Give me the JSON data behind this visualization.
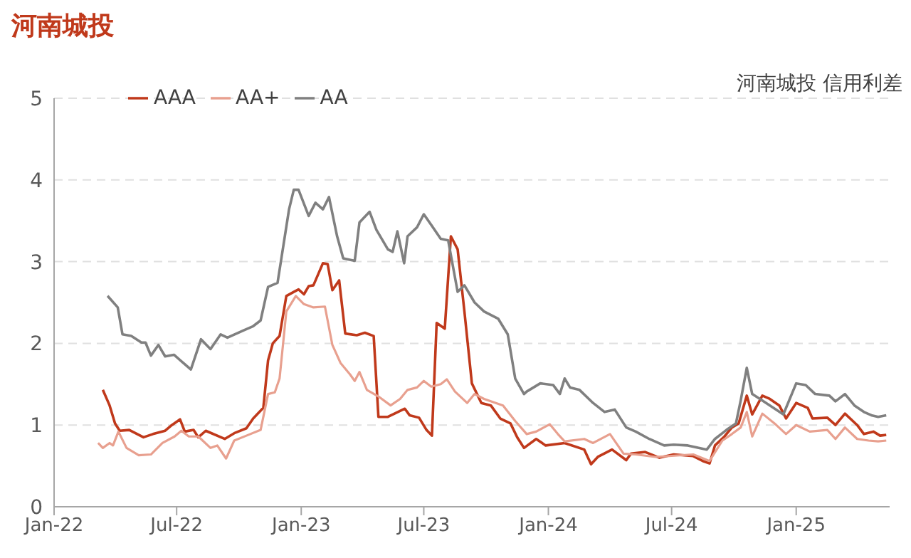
{
  "chart_data": {
    "type": "line",
    "title": "河南城投",
    "annotations": [
      "河南城投 信用利差"
    ],
    "xlim": [
      "2022-01-01",
      "2025-05-19"
    ],
    "xticks": [
      {
        "value": "2022-01-01",
        "label": "Jan-22"
      },
      {
        "value": "2022-07-01",
        "label": "Jul-22"
      },
      {
        "value": "2023-01-01",
        "label": "Jan-23"
      },
      {
        "value": "2023-07-01",
        "label": "Jul-23"
      },
      {
        "value": "2024-01-01",
        "label": "Jan-24"
      },
      {
        "value": "2024-07-01",
        "label": "Jul-24"
      },
      {
        "value": "2025-01-01",
        "label": "Jan-25"
      }
    ],
    "ylim": [
      0,
      5
    ],
    "yticks": [
      0,
      1,
      2,
      3,
      4,
      5
    ],
    "grid": "y",
    "legend": "top",
    "marker": "none",
    "line_style": "solid",
    "series": [
      {
        "name": "AAA",
        "color": "#c0391b",
        "x": [
          "2022-03-14",
          "2022-03-24",
          "2022-04-01",
          "2022-04-08",
          "2022-04-22",
          "2022-05-13",
          "2022-05-27",
          "2022-06-14",
          "2022-06-24",
          "2022-07-06",
          "2022-07-13",
          "2022-07-26",
          "2022-08-02",
          "2022-08-13",
          "2022-09-10",
          "2022-09-24",
          "2022-10-12",
          "2022-10-22",
          "2022-11-06",
          "2022-11-13",
          "2022-11-20",
          "2022-11-30",
          "2022-12-10",
          "2022-12-21",
          "2022-12-28",
          "2023-01-05",
          "2023-01-12",
          "2023-01-19",
          "2023-02-02",
          "2023-02-09",
          "2023-02-16",
          "2023-02-26",
          "2023-03-07",
          "2023-03-24",
          "2023-04-05",
          "2023-04-18",
          "2023-04-25",
          "2023-05-09",
          "2023-06-03",
          "2023-06-10",
          "2023-06-24",
          "2023-07-05",
          "2023-07-13",
          "2023-07-20",
          "2023-08-01",
          "2023-08-10",
          "2023-08-20",
          "2023-08-30",
          "2023-09-10",
          "2023-09-24",
          "2023-10-08",
          "2023-10-22",
          "2023-11-06",
          "2023-11-16",
          "2023-11-26",
          "2023-12-14",
          "2023-12-28",
          "2024-01-25",
          "2024-02-23",
          "2024-03-04",
          "2024-03-14",
          "2024-04-04",
          "2024-04-25",
          "2024-05-02",
          "2024-05-23",
          "2024-06-13",
          "2024-07-04",
          "2024-08-02",
          "2024-08-16",
          "2024-08-26",
          "2024-09-03",
          "2024-09-17",
          "2024-09-28",
          "2024-10-08",
          "2024-10-20",
          "2024-10-28",
          "2024-11-12",
          "2024-11-23",
          "2024-12-07",
          "2024-12-17",
          "2025-01-01",
          "2025-01-18",
          "2025-01-25",
          "2025-02-16",
          "2025-02-28",
          "2025-03-14",
          "2025-04-01",
          "2025-04-11",
          "2025-04-25",
          "2025-05-05",
          "2025-05-14"
        ],
        "values": [
          1.43,
          1.24,
          1.02,
          0.93,
          0.94,
          0.85,
          0.89,
          0.93,
          1.0,
          1.07,
          0.92,
          0.94,
          0.85,
          0.93,
          0.83,
          0.9,
          0.96,
          1.08,
          1.21,
          1.79,
          2.0,
          2.09,
          2.58,
          2.63,
          2.66,
          2.6,
          2.7,
          2.71,
          2.98,
          2.97,
          2.65,
          2.77,
          2.12,
          2.1,
          2.13,
          2.09,
          1.1,
          1.1,
          1.2,
          1.12,
          1.09,
          0.94,
          0.87,
          2.25,
          2.18,
          3.31,
          3.15,
          2.39,
          1.51,
          1.27,
          1.24,
          1.08,
          1.02,
          0.85,
          0.72,
          0.83,
          0.75,
          0.78,
          0.7,
          0.52,
          0.61,
          0.7,
          0.57,
          0.65,
          0.67,
          0.6,
          0.64,
          0.62,
          0.56,
          0.53,
          0.75,
          0.86,
          0.97,
          1.02,
          1.36,
          1.13,
          1.36,
          1.32,
          1.24,
          1.08,
          1.27,
          1.21,
          1.08,
          1.09,
          1.0,
          1.14,
          1.0,
          0.89,
          0.92,
          0.87,
          0.88
        ]
      },
      {
        "name": "AA+",
        "color": "#e8a08f",
        "x": [
          "2022-03-07",
          "2022-03-14",
          "2022-03-24",
          "2022-03-29",
          "2022-04-06",
          "2022-04-18",
          "2022-05-06",
          "2022-05-24",
          "2022-06-10",
          "2022-06-28",
          "2022-07-08",
          "2022-07-19",
          "2022-08-02",
          "2022-08-20",
          "2022-08-30",
          "2022-09-12",
          "2022-09-24",
          "2022-10-12",
          "2022-11-02",
          "2022-11-13",
          "2022-11-23",
          "2022-11-30",
          "2022-12-10",
          "2022-12-24",
          "2023-01-05",
          "2023-01-19",
          "2023-02-05",
          "2023-02-16",
          "2023-02-28",
          "2023-03-14",
          "2023-03-21",
          "2023-03-28",
          "2023-04-08",
          "2023-04-25",
          "2023-05-13",
          "2023-05-27",
          "2023-06-07",
          "2023-06-21",
          "2023-07-01",
          "2023-07-12",
          "2023-07-26",
          "2023-08-04",
          "2023-08-16",
          "2023-09-03",
          "2023-09-14",
          "2023-09-28",
          "2023-10-26",
          "2023-11-13",
          "2023-11-30",
          "2023-12-14",
          "2024-01-03",
          "2024-01-15",
          "2024-01-25",
          "2024-02-23",
          "2024-03-07",
          "2024-04-01",
          "2024-04-21",
          "2024-05-09",
          "2024-06-07",
          "2024-08-02",
          "2024-08-26",
          "2024-09-14",
          "2024-09-28",
          "2024-10-11",
          "2024-10-20",
          "2024-10-28",
          "2024-11-12",
          "2024-11-30",
          "2024-12-17",
          "2025-01-01",
          "2025-01-21",
          "2025-02-16",
          "2025-02-28",
          "2025-03-14",
          "2025-04-01",
          "2025-04-18",
          "2025-05-02",
          "2025-05-14"
        ],
        "values": [
          0.78,
          0.72,
          0.78,
          0.75,
          0.92,
          0.72,
          0.63,
          0.64,
          0.78,
          0.86,
          0.93,
          0.86,
          0.86,
          0.72,
          0.75,
          0.59,
          0.81,
          0.87,
          0.94,
          1.38,
          1.4,
          1.57,
          2.39,
          2.58,
          2.48,
          2.44,
          2.45,
          1.98,
          1.76,
          1.62,
          1.54,
          1.65,
          1.43,
          1.35,
          1.24,
          1.32,
          1.43,
          1.46,
          1.54,
          1.47,
          1.5,
          1.56,
          1.41,
          1.27,
          1.38,
          1.32,
          1.24,
          1.05,
          0.89,
          0.92,
          1.01,
          0.89,
          0.8,
          0.83,
          0.78,
          0.89,
          0.65,
          0.64,
          0.61,
          0.64,
          0.56,
          0.81,
          0.89,
          0.97,
          1.16,
          0.86,
          1.14,
          1.02,
          0.89,
          1.0,
          0.92,
          0.94,
          0.83,
          0.97,
          0.83,
          0.81,
          0.8,
          0.81
        ]
      },
      {
        "name": "AA",
        "color": "#808080",
        "x": [
          "2022-03-21",
          "2022-04-05",
          "2022-04-12",
          "2022-04-25",
          "2022-05-10",
          "2022-05-16",
          "2022-05-24",
          "2022-06-04",
          "2022-06-14",
          "2022-06-27",
          "2022-07-22",
          "2022-08-06",
          "2022-08-20",
          "2022-09-04",
          "2022-09-14",
          "2022-10-08",
          "2022-10-22",
          "2022-11-02",
          "2022-11-13",
          "2022-11-27",
          "2022-12-14",
          "2022-12-21",
          "2022-12-28",
          "2023-01-12",
          "2023-01-22",
          "2023-02-02",
          "2023-02-11",
          "2023-02-23",
          "2023-03-04",
          "2023-03-21",
          "2023-03-28",
          "2023-04-12",
          "2023-04-22",
          "2023-05-09",
          "2023-05-16",
          "2023-05-23",
          "2023-06-02",
          "2023-06-07",
          "2023-06-21",
          "2023-07-01",
          "2023-07-12",
          "2023-07-26",
          "2023-08-06",
          "2023-08-20",
          "2023-08-30",
          "2023-09-14",
          "2023-09-28",
          "2023-10-19",
          "2023-11-02",
          "2023-11-13",
          "2023-11-26",
          "2023-11-30",
          "2023-12-20",
          "2024-01-08",
          "2024-01-18",
          "2024-01-25",
          "2024-02-02",
          "2024-02-16",
          "2024-03-07",
          "2024-03-24",
          "2024-04-08",
          "2024-04-25",
          "2024-05-09",
          "2024-05-29",
          "2024-06-20",
          "2024-07-04",
          "2024-07-25",
          "2024-08-22",
          "2024-09-03",
          "2024-09-20",
          "2024-10-04",
          "2024-10-11",
          "2024-10-20",
          "2024-10-28",
          "2024-11-12",
          "2024-12-13",
          "2025-01-01",
          "2025-01-15",
          "2025-01-29",
          "2025-02-19",
          "2025-02-28",
          "2025-03-14",
          "2025-03-28",
          "2025-04-11",
          "2025-04-22",
          "2025-05-02",
          "2025-05-14"
        ],
        "values": [
          2.58,
          2.44,
          2.11,
          2.09,
          2.01,
          2.01,
          1.85,
          1.98,
          1.84,
          1.86,
          1.68,
          2.05,
          1.93,
          2.11,
          2.07,
          2.16,
          2.21,
          2.28,
          2.69,
          2.74,
          3.64,
          3.88,
          3.88,
          3.56,
          3.72,
          3.64,
          3.79,
          3.31,
          3.04,
          3.01,
          3.48,
          3.61,
          3.39,
          3.15,
          3.12,
          3.37,
          2.98,
          3.31,
          3.42,
          3.58,
          3.45,
          3.28,
          3.26,
          2.63,
          2.71,
          2.5,
          2.39,
          2.3,
          2.11,
          1.57,
          1.38,
          1.41,
          1.51,
          1.49,
          1.38,
          1.57,
          1.46,
          1.43,
          1.27,
          1.16,
          1.19,
          0.97,
          0.92,
          0.83,
          0.75,
          0.76,
          0.75,
          0.7,
          0.83,
          0.94,
          1.02,
          1.3,
          1.7,
          1.38,
          1.3,
          1.13,
          1.51,
          1.49,
          1.38,
          1.36,
          1.29,
          1.38,
          1.24,
          1.16,
          1.12,
          1.1,
          1.12
        ]
      }
    ]
  }
}
